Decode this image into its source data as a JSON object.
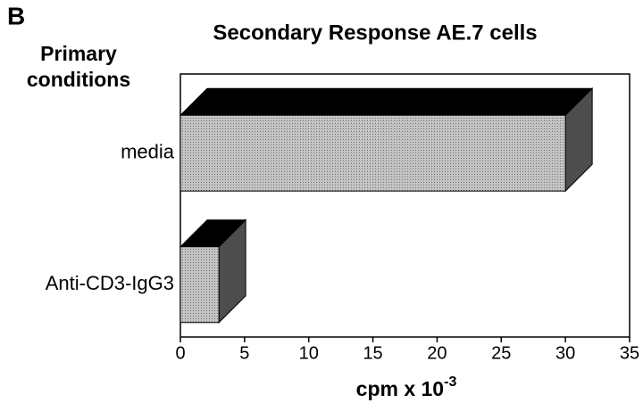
{
  "chart_data": {
    "type": "bar3d",
    "panel": "B",
    "title": "Secondary Response AE.7 cells",
    "ylabel": [
      "Primary",
      "conditions"
    ],
    "xlabel": "cpm x 10",
    "xlabel_exponent": "-3",
    "categories": [
      "media",
      "Anti-CD3-IgG3"
    ],
    "values": [
      30,
      3
    ],
    "color": "#c4c4c4",
    "top_color": "#000000",
    "side_color": "#4d4d4d",
    "xlim": [
      0,
      35
    ],
    "xticks": [
      0,
      5,
      10,
      15,
      20,
      25,
      30,
      35
    ]
  }
}
